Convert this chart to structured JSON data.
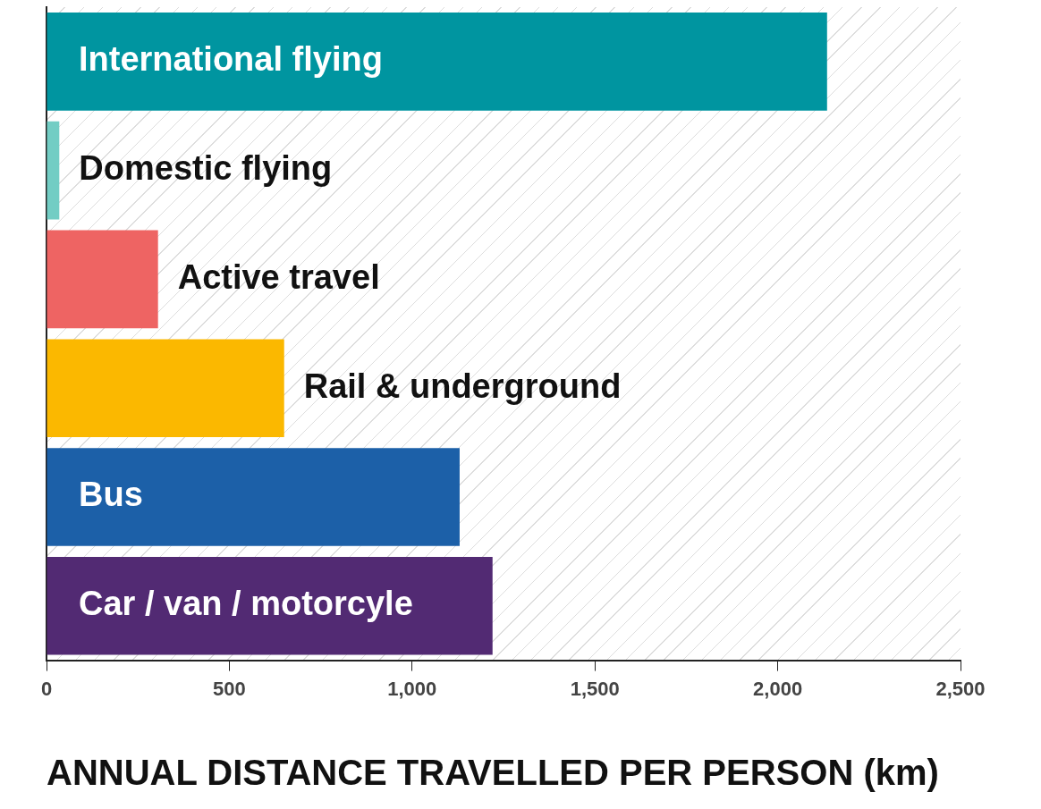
{
  "chart_data": {
    "type": "bar",
    "orientation": "horizontal",
    "xlabel": "ANNUAL DISTANCE TRAVELLED PER PERSON (km)",
    "categories": [
      "International flying",
      "Domestic flying",
      "Active travel",
      "Rail & underground",
      "Bus",
      "Car / van / motorcyle"
    ],
    "values": [
      2135,
      35,
      305,
      650,
      1130,
      1220
    ],
    "colors": [
      "#0095a0",
      "#72cdc4",
      "#ee6463",
      "#fbb800",
      "#1c60a8",
      "#522a73"
    ],
    "xlim": [
      0,
      2500
    ],
    "xticks": [
      0,
      {
        "value": 500,
        "label": "500"
      },
      {
        "value": 1000,
        "label": "1,000"
      },
      {
        "value": 1500,
        "label": "1,500"
      },
      {
        "value": 2000,
        "label": "2,000"
      },
      {
        "value": 2500,
        "label": "2,500"
      }
    ],
    "grid": false,
    "legend": false,
    "tick_labels": "x"
  }
}
